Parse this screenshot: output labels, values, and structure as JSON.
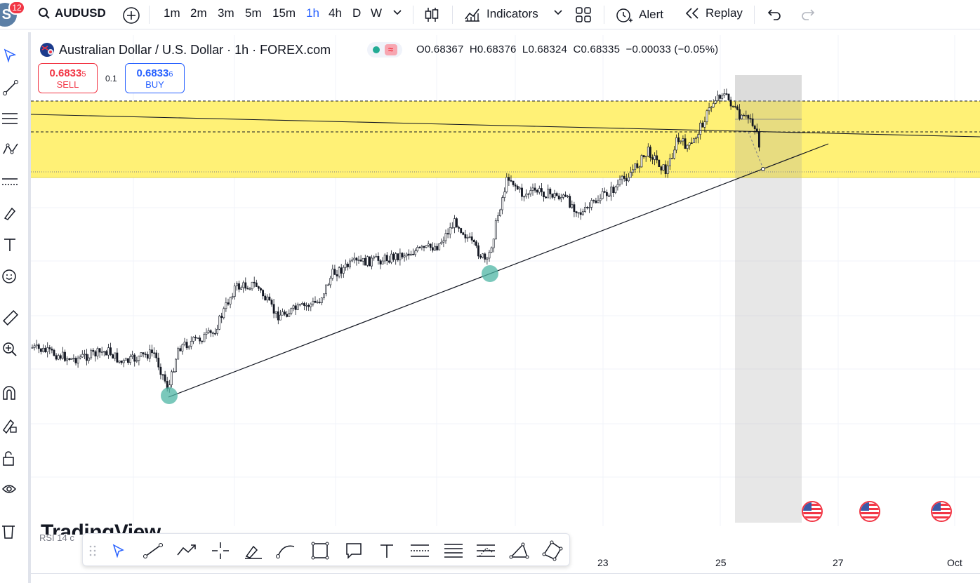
{
  "header": {
    "notification_count": "12",
    "avatar_letter": "S",
    "symbol": "AUDUSD",
    "timeframes": [
      "1m",
      "2m",
      "3m",
      "5m",
      "15m",
      "1h",
      "4h",
      "D",
      "W"
    ],
    "active_timeframe": "1h",
    "indicators_label": "Indicators",
    "alert_label": "Alert",
    "replay_label": "Replay"
  },
  "legend": {
    "title": "Australian Dollar / U.S. Dollar · 1h · FOREX.com",
    "open": "O0.68367",
    "high": "H0.68376",
    "low": "L0.68324",
    "close": "C0.68335",
    "change": "−0.00033 (−0.05%)"
  },
  "trade": {
    "sell_price_main": "0.6833",
    "sell_price_small": "5",
    "sell_label": "SELL",
    "buy_price_main": "0.6833",
    "buy_price_small": "6",
    "buy_label": "BUY",
    "quantity": "0.1"
  },
  "watermark": "TradingView",
  "indicator_label": "RSI 14 c",
  "date_labels": [
    "23",
    "25",
    "27",
    "Oct"
  ],
  "colors": {
    "accent": "#2962ff",
    "sell": "#f23645",
    "zone": "#fff176",
    "swing_marker": "#4db6a4"
  }
}
